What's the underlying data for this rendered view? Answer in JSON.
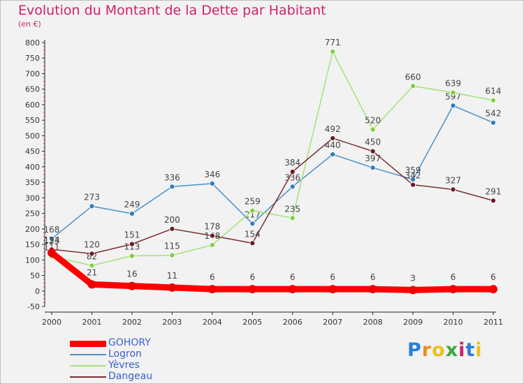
{
  "title": "Evolution du Montant de la Dette par Habitant",
  "subtitle": "(en €)",
  "logo": {
    "text": "Proxiti",
    "colors": [
      "#2a7fd4",
      "#f28c1a",
      "#e8c31a",
      "#3aa83a",
      "#d21f6e",
      "#2a7fd4",
      "#e8c31a"
    ]
  },
  "chart_data": {
    "type": "line",
    "title": "Evolution du Montant de la Dette par Habitant",
    "subtitle": "(en €)",
    "xlabel": "",
    "ylabel": "",
    "categories": [
      "2000",
      "2001",
      "2002",
      "2003",
      "2004",
      "2005",
      "2006",
      "2007",
      "2008",
      "2009",
      "2010",
      "2011"
    ],
    "ylim": [
      -50,
      800
    ],
    "yticks": [
      -50,
      0,
      50,
      100,
      150,
      200,
      250,
      300,
      350,
      400,
      450,
      500,
      550,
      600,
      650,
      700,
      750,
      800
    ],
    "grid": false,
    "legend_position": "bottom-left",
    "series": [
      {
        "name": "Logron",
        "color": "#4a90c8",
        "marker": "#2e7cc0",
        "values": [
          168,
          273,
          249,
          336,
          346,
          217,
          336,
          440,
          397,
          359,
          597,
          542
        ]
      },
      {
        "name": "Yèvres",
        "color": "#a6e07a",
        "marker": "#7ed03e",
        "values": [
          111,
          82,
          113,
          115,
          148,
          259,
          235,
          771,
          520,
          660,
          639,
          614
        ]
      },
      {
        "name": "Dangeau",
        "color": "#7a2f33",
        "marker": "#6a1a20",
        "values": [
          134,
          120,
          151,
          200,
          178,
          154,
          384,
          492,
          450,
          342,
          327,
          291
        ]
      },
      {
        "name": "GOHORY",
        "color": "#ff0000",
        "marker": "#ee0000",
        "values": [
          123,
          21,
          16,
          11,
          6,
          6,
          6,
          6,
          6,
          3,
          6,
          6
        ]
      }
    ],
    "legend_order": [
      "GOHORY",
      "Logron",
      "Yèvres",
      "Dangeau"
    ]
  }
}
